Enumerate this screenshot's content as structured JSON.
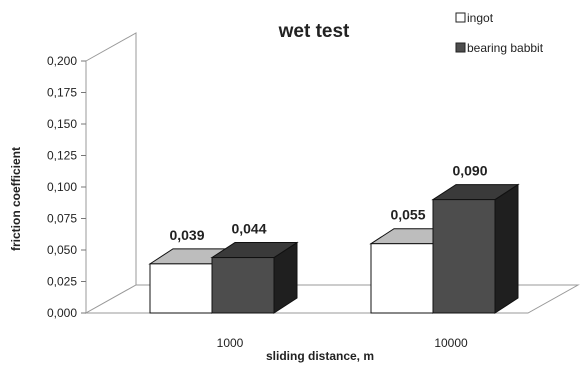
{
  "chart_data": {
    "type": "bar",
    "title": "wet test",
    "xlabel": "sliding distance,  m",
    "ylabel": "friction coefficient",
    "categories": [
      "1000",
      "10000"
    ],
    "series": [
      {
        "name": "ingot",
        "values": [
          0.039,
          0.055
        ],
        "labels": [
          "0,039",
          "0,055"
        ],
        "color": "#ffffff"
      },
      {
        "name": "bearing babbit",
        "values": [
          0.044,
          0.09
        ],
        "labels": [
          "0,044",
          "0,090"
        ],
        "color": "#4d4d4d"
      }
    ],
    "ylim": [
      0,
      0.2
    ],
    "y_ticks": [
      "0,000",
      "0,025",
      "0,050",
      "0,075",
      "0,100",
      "0,125",
      "0,150",
      "0,175",
      "0,200"
    ],
    "legend_position": "top-right",
    "three_d": true,
    "grid": false
  }
}
